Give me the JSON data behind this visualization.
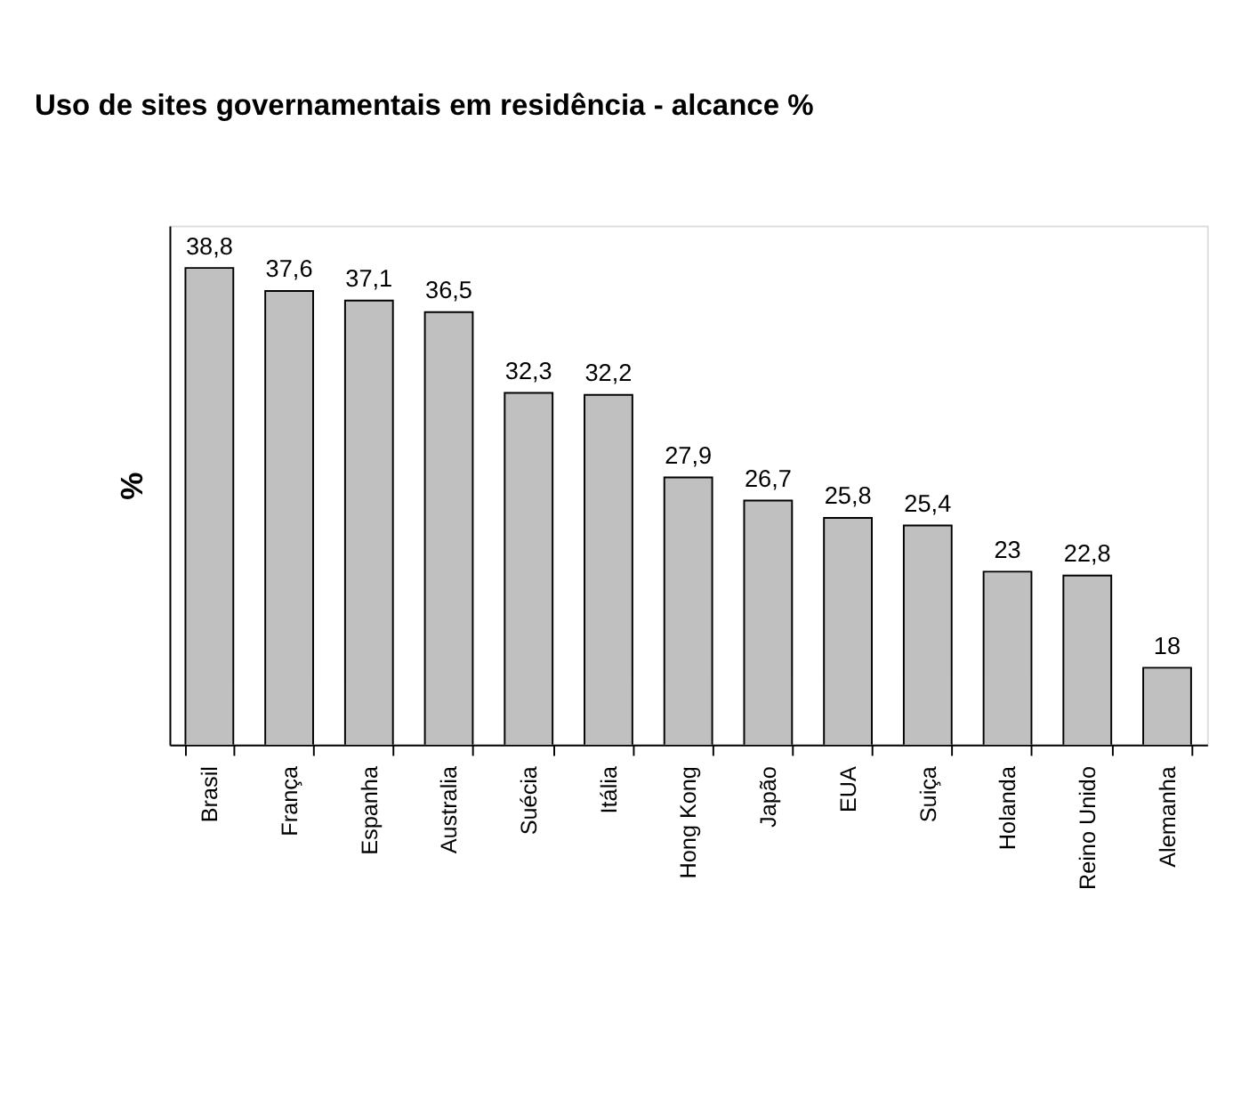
{
  "chart_data": {
    "type": "bar",
    "title": "Uso de sites governamentais em residência - alcance %",
    "ylabel": "%",
    "categories": [
      "Brasil",
      "França",
      "Espanha",
      "Australia",
      "Suécia",
      "Itália",
      "Hong Kong",
      "Japão",
      "EUA",
      "Suiça",
      "Holanda",
      "Reino Unido",
      "Alemanha"
    ],
    "values": [
      38.8,
      37.6,
      37.1,
      36.5,
      32.3,
      32.2,
      27.9,
      26.7,
      25.8,
      25.4,
      23,
      22.8,
      18
    ],
    "value_labels": [
      "38,8",
      "37,6",
      "37,1",
      "36,5",
      "32,3",
      "32,2",
      "27,9",
      "26,7",
      "25,8",
      "25,4",
      "23",
      "22,8",
      "18"
    ],
    "color": "#c0c0c0",
    "ylim": [
      14,
      41
    ],
    "grid": false
  }
}
